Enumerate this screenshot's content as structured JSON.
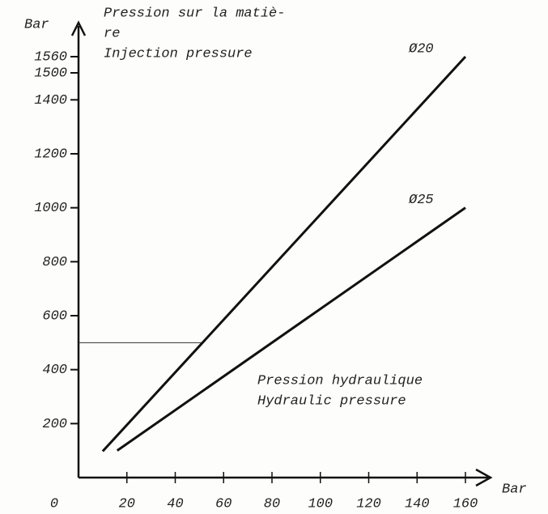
{
  "chart_data": {
    "type": "line",
    "title_lines": [
      "Pression sur la matiè-",
      "re",
      "Injection pressure"
    ],
    "y_label": "Bar",
    "x_label": "Bar",
    "x_axis_title_lines": [
      "Pression hydraulique",
      "Hydraulic pressure"
    ],
    "xlim": [
      0,
      160
    ],
    "xticks": [
      0,
      20,
      40,
      60,
      80,
      100,
      120,
      140,
      160
    ],
    "ylim": [
      0,
      1560
    ],
    "yticks": [
      200,
      400,
      600,
      800,
      1000,
      1200,
      1400,
      1500,
      1560
    ],
    "series": [
      {
        "name": "Ø20",
        "color": "#111111",
        "x": [
          10,
          160
        ],
        "values": [
          97.5,
          1560
        ]
      },
      {
        "name": "Ø25",
        "color": "#111111",
        "x": [
          16,
          160
        ],
        "values": [
          100,
          1000
        ]
      }
    ],
    "guide": {
      "x": 51.3,
      "y": 500
    }
  }
}
